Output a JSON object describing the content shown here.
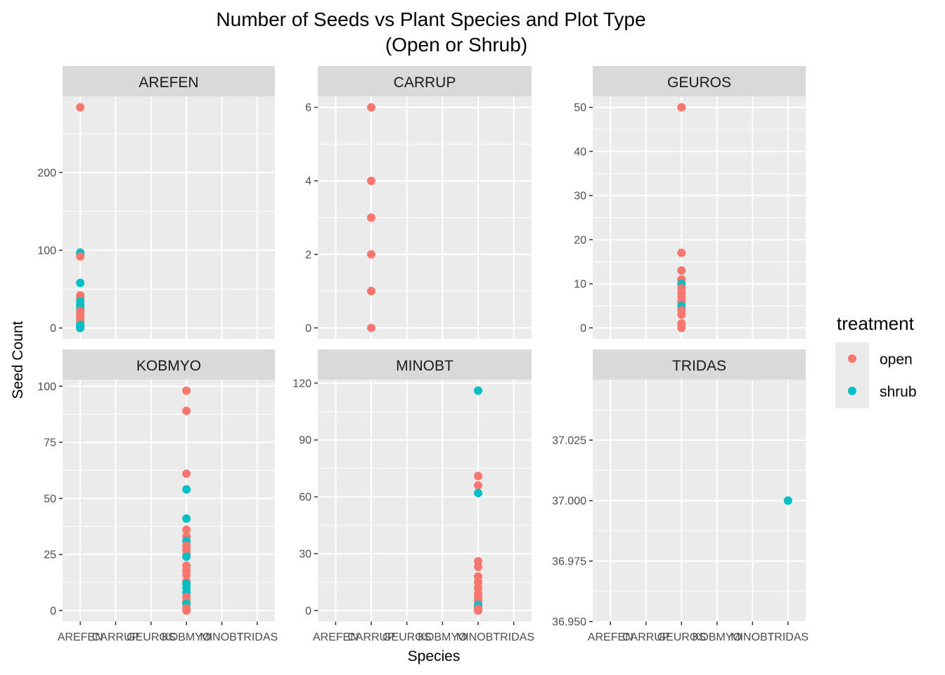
{
  "chart_data": {
    "type": "scatter",
    "title_lines": [
      "Number of Seeds vs Plant Species and Plot Type",
      "(Open or Shrub)"
    ],
    "xlabel": "Species",
    "ylabel": "Seed Count",
    "x_categories": [
      "AREFEN",
      "CARRUP",
      "GEUROS",
      "KOBMYO",
      "MINOBT",
      "TRIDAS"
    ],
    "legend": {
      "title": "treatment",
      "position": "right",
      "entries": [
        {
          "label": "open",
          "color": "#F8766D"
        },
        {
          "label": "shrub",
          "color": "#00BFC4"
        }
      ]
    },
    "grid": true,
    "panels": [
      {
        "label": "AREFEN",
        "ylim": [
          -14,
          298
        ],
        "yticks": [
          0,
          100,
          200
        ],
        "ytick_labels": [
          "0",
          "100",
          "200"
        ],
        "points": [
          {
            "x": "AREFEN",
            "y": 284,
            "treatment": "open"
          },
          {
            "x": "AREFEN",
            "y": 97,
            "treatment": "shrub"
          },
          {
            "x": "AREFEN",
            "y": 95,
            "treatment": "shrub"
          },
          {
            "x": "AREFEN",
            "y": 92,
            "treatment": "open"
          },
          {
            "x": "AREFEN",
            "y": 58,
            "treatment": "shrub"
          },
          {
            "x": "AREFEN",
            "y": 42,
            "treatment": "open"
          },
          {
            "x": "AREFEN",
            "y": 38,
            "treatment": "open"
          },
          {
            "x": "AREFEN",
            "y": 34,
            "treatment": "shrub"
          },
          {
            "x": "AREFEN",
            "y": 29,
            "treatment": "shrub"
          },
          {
            "x": "AREFEN",
            "y": 25,
            "treatment": "shrub"
          },
          {
            "x": "AREFEN",
            "y": 22,
            "treatment": "open"
          },
          {
            "x": "AREFEN",
            "y": 18,
            "treatment": "open"
          },
          {
            "x": "AREFEN",
            "y": 15,
            "treatment": "open"
          },
          {
            "x": "AREFEN",
            "y": 11,
            "treatment": "open"
          },
          {
            "x": "AREFEN",
            "y": 8,
            "treatment": "open"
          },
          {
            "x": "AREFEN",
            "y": 4,
            "treatment": "shrub"
          },
          {
            "x": "AREFEN",
            "y": 2,
            "treatment": "shrub"
          },
          {
            "x": "AREFEN",
            "y": 0,
            "treatment": "shrub"
          }
        ]
      },
      {
        "label": "CARRUP",
        "ylim": [
          -0.3,
          6.3
        ],
        "yticks": [
          0,
          2,
          4,
          6
        ],
        "ytick_labels": [
          "0",
          "2",
          "4",
          "6"
        ],
        "points": [
          {
            "x": "CARRUP",
            "y": 6,
            "treatment": "open"
          },
          {
            "x": "CARRUP",
            "y": 4,
            "treatment": "open"
          },
          {
            "x": "CARRUP",
            "y": 3,
            "treatment": "open"
          },
          {
            "x": "CARRUP",
            "y": 2,
            "treatment": "open"
          },
          {
            "x": "CARRUP",
            "y": 1,
            "treatment": "open"
          },
          {
            "x": "CARRUP",
            "y": 0,
            "treatment": "open"
          }
        ]
      },
      {
        "label": "GEUROS",
        "ylim": [
          -2.5,
          52.5
        ],
        "yticks": [
          0,
          10,
          20,
          30,
          40,
          50
        ],
        "ytick_labels": [
          "0",
          "10",
          "20",
          "30",
          "40",
          "50"
        ],
        "points": [
          {
            "x": "GEUROS",
            "y": 50,
            "treatment": "open"
          },
          {
            "x": "GEUROS",
            "y": 17,
            "treatment": "open"
          },
          {
            "x": "GEUROS",
            "y": 13,
            "treatment": "open"
          },
          {
            "x": "GEUROS",
            "y": 11,
            "treatment": "open"
          },
          {
            "x": "GEUROS",
            "y": 10,
            "treatment": "shrub"
          },
          {
            "x": "GEUROS",
            "y": 9,
            "treatment": "open"
          },
          {
            "x": "GEUROS",
            "y": 8,
            "treatment": "open"
          },
          {
            "x": "GEUROS",
            "y": 7,
            "treatment": "open"
          },
          {
            "x": "GEUROS",
            "y": 6,
            "treatment": "open"
          },
          {
            "x": "GEUROS",
            "y": 5,
            "treatment": "shrub"
          },
          {
            "x": "GEUROS",
            "y": 4,
            "treatment": "open"
          },
          {
            "x": "GEUROS",
            "y": 3,
            "treatment": "open"
          },
          {
            "x": "GEUROS",
            "y": 1,
            "treatment": "open"
          },
          {
            "x": "GEUROS",
            "y": 0,
            "treatment": "open"
          }
        ]
      },
      {
        "label": "KOBMYO",
        "ylim": [
          -4.9,
          102.9
        ],
        "yticks": [
          0,
          25,
          50,
          75,
          100
        ],
        "ytick_labels": [
          "0",
          "25",
          "50",
          "75",
          "100"
        ],
        "points": [
          {
            "x": "KOBMYO",
            "y": 98,
            "treatment": "open"
          },
          {
            "x": "KOBMYO",
            "y": 89,
            "treatment": "open"
          },
          {
            "x": "KOBMYO",
            "y": 61,
            "treatment": "open"
          },
          {
            "x": "KOBMYO",
            "y": 54,
            "treatment": "shrub"
          },
          {
            "x": "KOBMYO",
            "y": 41,
            "treatment": "shrub"
          },
          {
            "x": "KOBMYO",
            "y": 36,
            "treatment": "open"
          },
          {
            "x": "KOBMYO",
            "y": 33,
            "treatment": "open"
          },
          {
            "x": "KOBMYO",
            "y": 31,
            "treatment": "shrub"
          },
          {
            "x": "KOBMYO",
            "y": 29,
            "treatment": "open"
          },
          {
            "x": "KOBMYO",
            "y": 27,
            "treatment": "open"
          },
          {
            "x": "KOBMYO",
            "y": 25,
            "treatment": "open"
          },
          {
            "x": "KOBMYO",
            "y": 24,
            "treatment": "shrub"
          },
          {
            "x": "KOBMYO",
            "y": 20,
            "treatment": "open"
          },
          {
            "x": "KOBMYO",
            "y": 18,
            "treatment": "open"
          },
          {
            "x": "KOBMYO",
            "y": 16,
            "treatment": "open"
          },
          {
            "x": "KOBMYO",
            "y": 13,
            "treatment": "open"
          },
          {
            "x": "KOBMYO",
            "y": 12,
            "treatment": "shrub"
          },
          {
            "x": "KOBMYO",
            "y": 10,
            "treatment": "shrub"
          },
          {
            "x": "KOBMYO",
            "y": 8,
            "treatment": "shrub"
          },
          {
            "x": "KOBMYO",
            "y": 6,
            "treatment": "open"
          },
          {
            "x": "KOBMYO",
            "y": 4,
            "treatment": "open"
          },
          {
            "x": "KOBMYO",
            "y": 3,
            "treatment": "shrub"
          },
          {
            "x": "KOBMYO",
            "y": 1,
            "treatment": "open"
          },
          {
            "x": "KOBMYO",
            "y": 0,
            "treatment": "open"
          }
        ]
      },
      {
        "label": "MINOBT",
        "ylim": [
          -5.8,
          121.8
        ],
        "yticks": [
          0,
          30,
          60,
          90,
          120
        ],
        "ytick_labels": [
          "0",
          "30",
          "60",
          "90",
          "120"
        ],
        "points": [
          {
            "x": "MINOBT",
            "y": 116,
            "treatment": "shrub"
          },
          {
            "x": "MINOBT",
            "y": 71,
            "treatment": "open"
          },
          {
            "x": "MINOBT",
            "y": 66,
            "treatment": "open"
          },
          {
            "x": "MINOBT",
            "y": 62,
            "treatment": "shrub"
          },
          {
            "x": "MINOBT",
            "y": 26,
            "treatment": "open"
          },
          {
            "x": "MINOBT",
            "y": 23,
            "treatment": "open"
          },
          {
            "x": "MINOBT",
            "y": 18,
            "treatment": "open"
          },
          {
            "x": "MINOBT",
            "y": 15,
            "treatment": "open"
          },
          {
            "x": "MINOBT",
            "y": 12,
            "treatment": "open"
          },
          {
            "x": "MINOBT",
            "y": 9,
            "treatment": "open"
          },
          {
            "x": "MINOBT",
            "y": 7,
            "treatment": "open"
          },
          {
            "x": "MINOBT",
            "y": 5,
            "treatment": "open"
          },
          {
            "x": "MINOBT",
            "y": 3,
            "treatment": "shrub"
          },
          {
            "x": "MINOBT",
            "y": 2,
            "treatment": "shrub"
          },
          {
            "x": "MINOBT",
            "y": 1,
            "treatment": "open"
          },
          {
            "x": "MINOBT",
            "y": 0,
            "treatment": "open"
          }
        ]
      },
      {
        "label": "TRIDAS",
        "ylim": [
          36.95,
          37.05
        ],
        "yticks": [
          36.95,
          36.975,
          37.0,
          37.025
        ],
        "ytick_labels": [
          "36.950",
          "36.975",
          "37.000",
          "37.025"
        ],
        "points": [
          {
            "x": "TRIDAS",
            "y": 37,
            "treatment": "shrub"
          }
        ]
      }
    ]
  }
}
